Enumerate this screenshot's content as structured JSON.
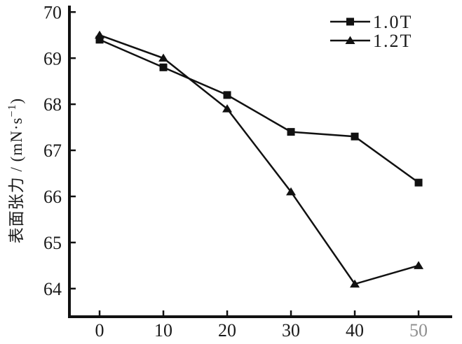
{
  "figure": {
    "background": "#ffffff",
    "axis_color": "#111111",
    "line_color": "#111111",
    "text_color": "#1a1a1a",
    "faded_tick_color": "#8f8f8f"
  },
  "chart_data": {
    "type": "line",
    "title": "",
    "xlabel": "",
    "ylabel": "表面张力 / (mN·s⁻¹)",
    "ylabel_parts": {
      "prefix": "表面张力 / (mN·s",
      "superscript": "−1",
      "suffix": ")"
    },
    "x": [
      0,
      10,
      20,
      30,
      40,
      50
    ],
    "x_tick_labels": [
      "0",
      "10",
      "20",
      "30",
      "40",
      "50"
    ],
    "y_ticks": [
      64,
      65,
      66,
      67,
      68,
      69,
      70
    ],
    "y_tick_labels": [
      "64",
      "65",
      "66",
      "67",
      "68",
      "69",
      "70"
    ],
    "xlim": [
      -4.73,
      55.27
    ],
    "ylim": [
      63.39,
      70.14
    ],
    "grid": false,
    "legend_position": "top-right",
    "series": [
      {
        "name": "1.0T",
        "marker": "square",
        "values": [
          69.4,
          68.8,
          68.2,
          67.4,
          67.3,
          66.3
        ]
      },
      {
        "name": "1.2T",
        "marker": "triangle",
        "values": [
          69.5,
          69.0,
          67.9,
          66.1,
          64.1,
          64.5
        ]
      }
    ]
  }
}
